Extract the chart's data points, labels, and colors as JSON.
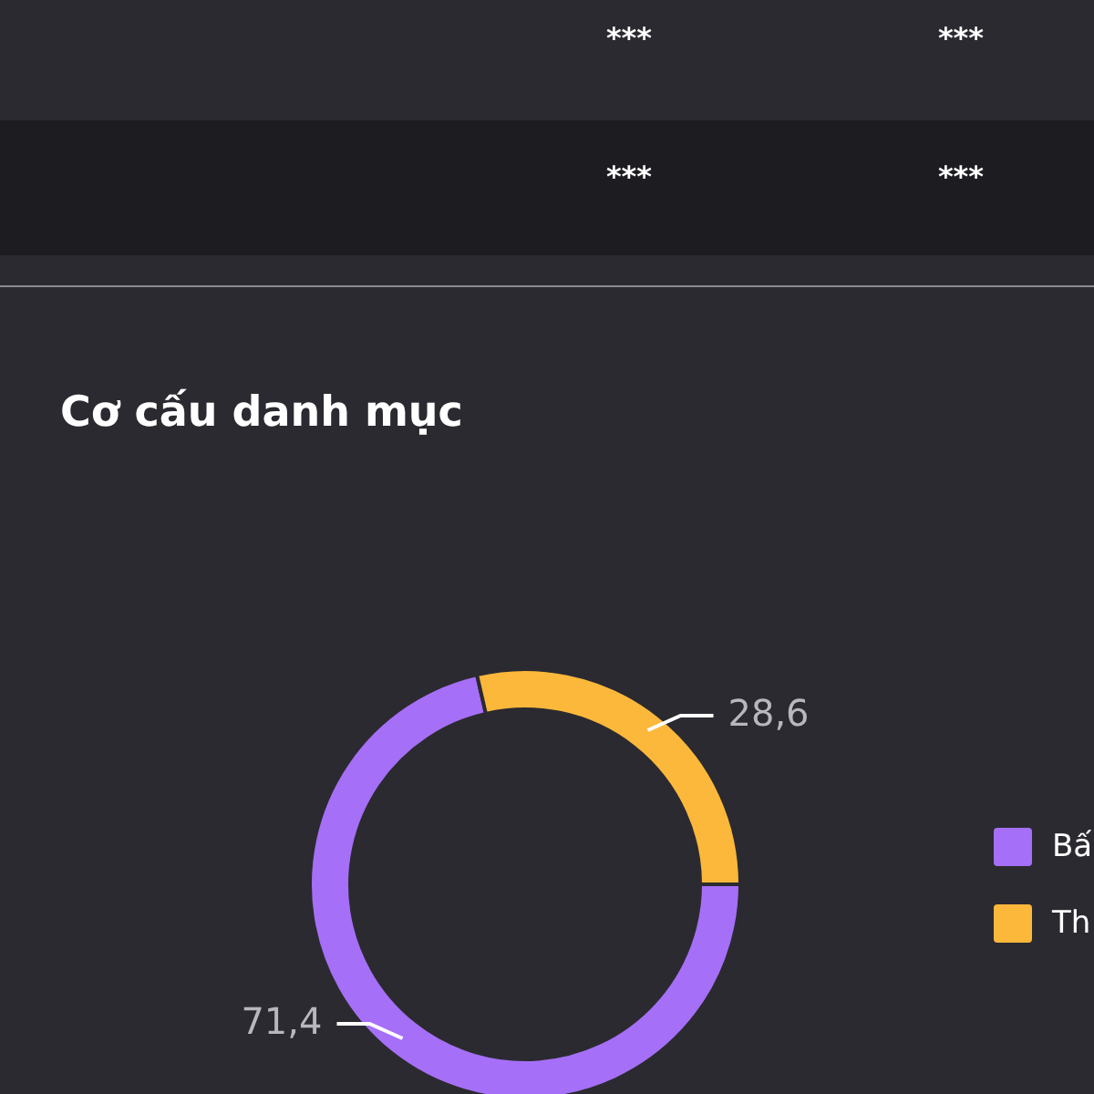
{
  "chart_data": [
    {
      "type": "other",
      "annotations": [
        "***",
        "***",
        "***",
        "***"
      ]
    },
    {
      "type": "donut",
      "title": "Cơ cấu danh mục",
      "categories": [
        "Bấ",
        "Th"
      ],
      "values": [
        71.4,
        28.6
      ],
      "colors": [
        "#a66ff7",
        "#fbb83a"
      ],
      "value_labels": [
        "71,4",
        "28,6"
      ],
      "legend": "right"
    }
  ]
}
